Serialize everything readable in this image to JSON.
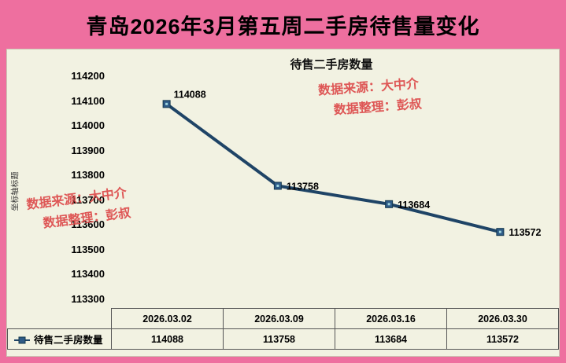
{
  "title": "青岛2026年3月第五周二手房待售量变化",
  "watermarks": {
    "source": "数据来源：大中介",
    "editor": "数据整理：彭叔"
  },
  "chart_data": {
    "type": "line",
    "title": "待售二手房数量",
    "ylabel": "坐标轴标题",
    "xlabel": "",
    "categories": [
      "2026.03.02",
      "2026.03.09",
      "2026.03.16",
      "2026.03.30"
    ],
    "series": [
      {
        "name": "待售二手房数量",
        "values": [
          114088,
          113758,
          113684,
          113572
        ]
      }
    ],
    "data_labels": [
      "114088",
      "113758",
      "113684",
      "113572"
    ],
    "ylim": [
      113300,
      114200
    ],
    "yticks": [
      114200,
      114100,
      114000,
      113900,
      113800,
      113700,
      113600,
      113500,
      113400,
      113300
    ],
    "grid": false,
    "legend_position": "table-left",
    "table_shown": true
  },
  "colors": {
    "background": "#ee6f9f",
    "panel": "#f2f2e2",
    "line": "#1f4466",
    "marker_fill": "#2e5a86",
    "marker_stroke": "#163a4f",
    "marker_center": "#9fd5e0",
    "watermark": "#dc4a4a"
  }
}
